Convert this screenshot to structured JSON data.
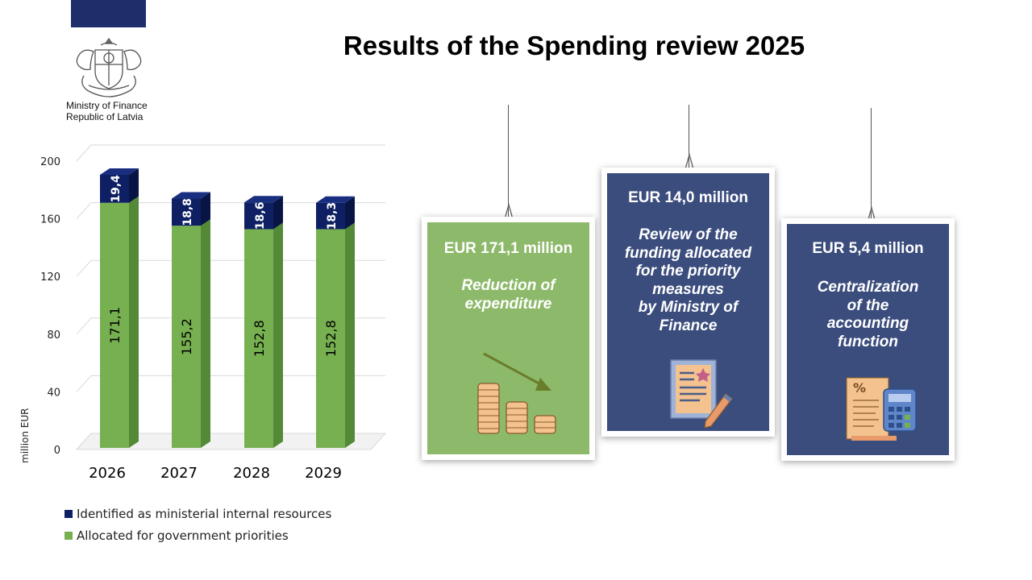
{
  "header": {
    "title": "Results of the Spending review 2025",
    "ministry_line1": "Ministry of Finance",
    "ministry_line2": "Republic of Latvia"
  },
  "colors": {
    "flag": "#1f2d6b",
    "green": "#77b050",
    "green_dark": "#548a37",
    "navy": "#0e2063",
    "card_green": "#8db96a",
    "card_navy": "#3b4d7d"
  },
  "chart_data": {
    "type": "bar",
    "stacked": true,
    "categories": [
      "2026",
      "2027",
      "2028",
      "2029"
    ],
    "series": [
      {
        "name": "Allocated for government priorities",
        "values": [
          171.1,
          155.2,
          152.8,
          152.8
        ],
        "labels": [
          "171,1",
          "155,2",
          "152,8",
          "152,8"
        ]
      },
      {
        "name": "Identified as ministerial internal resources",
        "values": [
          19.4,
          18.8,
          18.6,
          18.3
        ],
        "labels": [
          "19,4",
          "18,8",
          "18,6",
          "18,3"
        ]
      }
    ],
    "ylabel": "million EUR",
    "ylim": [
      0,
      200
    ],
    "yticks": [
      0,
      40,
      80,
      120,
      160,
      200
    ],
    "grid": true,
    "legend": "bottom"
  },
  "legend": {
    "items": [
      "Identified as ministerial internal resources",
      "Allocated for government priorities"
    ]
  },
  "cards": [
    {
      "amount": "EUR 171,1 million",
      "desc": [
        "Reduction of",
        "expenditure"
      ],
      "icon": "coins-down-icon"
    },
    {
      "amount": "EUR 14,0 million",
      "desc": [
        "Review of the",
        "funding allocated",
        "for the priority",
        "measures",
        "by Ministry of",
        "Finance"
      ],
      "icon": "document-pencil-icon"
    },
    {
      "amount": "EUR 5,4 million",
      "desc": [
        "Centralization",
        "of the",
        "accounting",
        "function"
      ],
      "icon": "calculator-receipt-icon"
    }
  ]
}
